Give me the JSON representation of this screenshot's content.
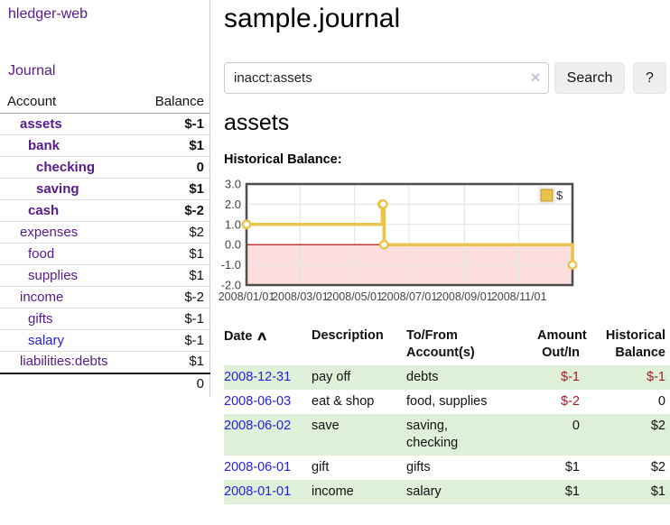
{
  "colors": {
    "purple": "#551a8b",
    "blue": "#2222dd",
    "negs": "#a01d23",
    "negf": "#c68181",
    "green": "#dff0d8",
    "gold": "#e9c34b",
    "pink": "#fcdede",
    "zero": "#aa0000",
    "grid": "#e3e3e3",
    "cborder": "#4d4d4d",
    "divider": "#cccccc",
    "btn": "#efefef"
  },
  "app": {
    "brand": "hledger-web",
    "nav_journal": "Journal"
  },
  "sidebar": {
    "account_header": "Account",
    "balance_header": "Balance",
    "rows": [
      {
        "name": "assets",
        "balance": "$-1",
        "indent": 1,
        "in_current": true,
        "balance_color": "neg-strong",
        "link_color": "purple"
      },
      {
        "name": "bank",
        "balance": "$1",
        "indent": 2,
        "in_current": true,
        "balance_color": "normal",
        "link_color": "purple"
      },
      {
        "name": "checking",
        "balance": "0",
        "indent": 3,
        "in_current": true,
        "balance_color": "normal",
        "link_color": "purple"
      },
      {
        "name": "saving",
        "balance": "$1",
        "indent": 3,
        "in_current": true,
        "balance_color": "normal",
        "link_color": "purple"
      },
      {
        "name": "cash",
        "balance": "$-2",
        "indent": 2,
        "in_current": true,
        "balance_color": "neg-strong",
        "link_color": "purple"
      },
      {
        "name": "expenses",
        "balance": "$2",
        "indent": 1,
        "in_current": false,
        "balance_color": "normal",
        "link_color": "purple"
      },
      {
        "name": "food",
        "balance": "$1",
        "indent": 2,
        "in_current": false,
        "balance_color": "normal",
        "link_color": "purple"
      },
      {
        "name": "supplies",
        "balance": "$1",
        "indent": 2,
        "in_current": false,
        "balance_color": "normal",
        "link_color": "purple"
      },
      {
        "name": "income",
        "balance": "$-2",
        "indent": 1,
        "in_current": false,
        "balance_color": "neg-soft",
        "link_color": "purple"
      },
      {
        "name": "gifts",
        "balance": "$-1",
        "indent": 2,
        "in_current": false,
        "balance_color": "neg-soft",
        "link_color": "purple"
      },
      {
        "name": "salary",
        "balance": "$-1",
        "indent": 2,
        "in_current": false,
        "balance_color": "neg-soft",
        "link_color": "blue"
      },
      {
        "name": "liabilities:debts",
        "balance": "$1",
        "indent": 1,
        "in_current": false,
        "balance_color": "normal",
        "link_color": "purple"
      }
    ],
    "total": "0"
  },
  "header": {
    "title": "sample.journal"
  },
  "search": {
    "value": "inacct:assets",
    "clear_icon": "×",
    "button_label": "Search",
    "help_label": "?"
  },
  "account_page": {
    "title": "assets",
    "chart_label": "Historical Balance:"
  },
  "chart_data": {
    "type": "line",
    "step": true,
    "title": "Historical Balance",
    "series": [
      {
        "name": "$",
        "color": "#e9c34b",
        "points": [
          {
            "x": "2008-01-01",
            "y": 1
          },
          {
            "x": "2008-06-01",
            "y": 2
          },
          {
            "x": "2008-06-02",
            "y": 2
          },
          {
            "x": "2008-06-03",
            "y": 0
          },
          {
            "x": "2008-12-31",
            "y": -1
          }
        ]
      }
    ],
    "x_range": [
      "2008-01-01",
      "2008-12-31"
    ],
    "ylim": [
      -2,
      3
    ],
    "y_ticks": [
      3.0,
      2.0,
      1.0,
      0.0,
      -1.0,
      -2.0
    ],
    "x_ticks": [
      {
        "label": "2008/01/01",
        "date": "2008-01-01"
      },
      {
        "label": "2008/03/01",
        "date": "2008-03-01"
      },
      {
        "label": "2008/05/01",
        "date": "2008-05-01"
      },
      {
        "label": "2008/07/01",
        "date": "2008-07-01"
      },
      {
        "label": "2008/09/01",
        "date": "2008-09-01"
      },
      {
        "label": "2008/11/01",
        "date": "2008-11-01"
      }
    ],
    "grid": true,
    "negative_region": true,
    "legend": {
      "position": "top-right",
      "label": "$"
    }
  },
  "register": {
    "headers": {
      "date": "Date",
      "sort_icon": "∧",
      "description": "Description",
      "accounts": "To/From\nAccount(s)",
      "amount": "Amount\nOut/In",
      "balance": "Historical\nBalance"
    },
    "rows": [
      {
        "date": "2008-12-31",
        "description": "pay off",
        "accounts": "debts",
        "amount": "$-1",
        "amount_negative": true,
        "balance": "$-1",
        "balance_negative": true,
        "shaded": true
      },
      {
        "date": "2008-06-03",
        "description": "eat & shop",
        "accounts": "food, supplies",
        "amount": "$-2",
        "amount_negative": true,
        "balance": "0",
        "balance_negative": false,
        "shaded": false
      },
      {
        "date": "2008-06-02",
        "description": "save",
        "accounts": "saving,\nchecking",
        "amount": "0",
        "amount_negative": false,
        "balance": "$2",
        "balance_negative": false,
        "shaded": true
      },
      {
        "date": "2008-06-01",
        "description": "gift",
        "accounts": "gifts",
        "amount": "$1",
        "amount_negative": false,
        "balance": "$2",
        "balance_negative": false,
        "shaded": false
      },
      {
        "date": "2008-01-01",
        "description": "income",
        "accounts": "salary",
        "amount": "$1",
        "amount_negative": false,
        "balance": "$1",
        "balance_negative": false,
        "shaded": true
      }
    ]
  }
}
